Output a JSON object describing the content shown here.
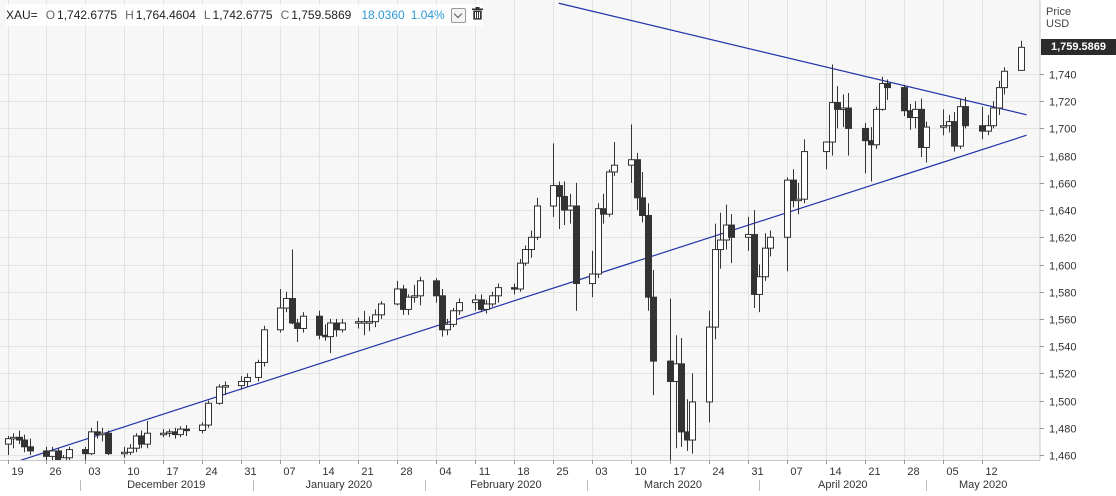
{
  "header": {
    "symbol": "XAU=",
    "open_label": "O",
    "open": "1,742.6775",
    "high_label": "H",
    "high": "1,764.4604",
    "low_label": "L",
    "low": "1,742.6775",
    "close_label": "C",
    "close": "1,759.5869",
    "change": "18.0360",
    "change_pct": "1.04%",
    "change_color": "#2b9bd6",
    "icons": [
      "dropdown-chevron-icon",
      "trash-icon"
    ]
  },
  "price_axis": {
    "title_line1": "Price",
    "title_line2": "USD",
    "last_price_label": "1,759.5869"
  },
  "chart_data": {
    "type": "candlestick",
    "symbol": "XAU=",
    "ylim": [
      1445,
      1783
    ],
    "y_ticks": [
      1460,
      1480,
      1500,
      1520,
      1540,
      1560,
      1580,
      1600,
      1620,
      1640,
      1660,
      1680,
      1700,
      1720,
      1740
    ],
    "y_tick_labels": [
      "1,460",
      "1,480",
      "1,500",
      "1,520",
      "1,540",
      "1,560",
      "1,580",
      "1,600",
      "1,620",
      "1,640",
      "1,660",
      "1,680",
      "1,700",
      "1,720",
      "1,740"
    ],
    "x_day_labels": [
      "19",
      "26",
      "03",
      "10",
      "17",
      "24",
      "31",
      "07",
      "14",
      "21",
      "28",
      "04",
      "11",
      "18",
      "25",
      "03",
      "10",
      "17",
      "24",
      "31",
      "07",
      "14",
      "21",
      "28",
      "05",
      "12"
    ],
    "x_month_labels": [
      "December 2019",
      "January 2020",
      "February 2020",
      "March 2020",
      "April 2020",
      "May 2020"
    ],
    "last_price": 1759.5869,
    "colors": {
      "up_fill": "#ffffff",
      "down_fill": "#333333",
      "outline": "#333333",
      "trendline": "#2233aa",
      "grid": "#e3e3e3"
    },
    "candles": [
      {
        "date": "2019-11-18",
        "o": 1468,
        "h": 1474,
        "l": 1460,
        "c": 1472
      },
      {
        "date": "2019-11-19",
        "o": 1472,
        "h": 1476,
        "l": 1465,
        "c": 1473
      },
      {
        "date": "2019-11-20",
        "o": 1473,
        "h": 1478,
        "l": 1468,
        "c": 1471
      },
      {
        "date": "2019-11-21",
        "o": 1471,
        "h": 1475,
        "l": 1462,
        "c": 1466
      },
      {
        "date": "2019-11-22",
        "o": 1466,
        "h": 1472,
        "l": 1460,
        "c": 1463
      },
      {
        "date": "2019-11-25",
        "o": 1463,
        "h": 1466,
        "l": 1455,
        "c": 1459
      },
      {
        "date": "2019-11-26",
        "o": 1459,
        "h": 1466,
        "l": 1455,
        "c": 1463
      },
      {
        "date": "2019-11-27",
        "o": 1463,
        "h": 1465,
        "l": 1453,
        "c": 1456
      },
      {
        "date": "2019-11-28",
        "o": 1456,
        "h": 1460,
        "l": 1452,
        "c": 1458
      },
      {
        "date": "2019-11-29",
        "o": 1458,
        "h": 1466,
        "l": 1455,
        "c": 1464
      },
      {
        "date": "2019-12-02",
        "o": 1464,
        "h": 1466,
        "l": 1455,
        "c": 1461
      },
      {
        "date": "2019-12-03",
        "o": 1461,
        "h": 1480,
        "l": 1460,
        "c": 1477
      },
      {
        "date": "2019-12-04",
        "o": 1477,
        "h": 1485,
        "l": 1472,
        "c": 1475
      },
      {
        "date": "2019-12-05",
        "o": 1475,
        "h": 1480,
        "l": 1470,
        "c": 1476
      },
      {
        "date": "2019-12-06",
        "o": 1476,
        "h": 1478,
        "l": 1460,
        "c": 1461
      },
      {
        "date": "2019-12-09",
        "o": 1461,
        "h": 1466,
        "l": 1458,
        "c": 1462
      },
      {
        "date": "2019-12-10",
        "o": 1462,
        "h": 1468,
        "l": 1460,
        "c": 1465
      },
      {
        "date": "2019-12-11",
        "o": 1465,
        "h": 1476,
        "l": 1462,
        "c": 1474
      },
      {
        "date": "2019-12-12",
        "o": 1474,
        "h": 1478,
        "l": 1465,
        "c": 1468
      },
      {
        "date": "2019-12-13",
        "o": 1468,
        "h": 1485,
        "l": 1465,
        "c": 1476
      },
      {
        "date": "2019-12-16",
        "o": 1476,
        "h": 1479,
        "l": 1473,
        "c": 1476
      },
      {
        "date": "2019-12-17",
        "o": 1476,
        "h": 1479,
        "l": 1473,
        "c": 1477
      },
      {
        "date": "2019-12-18",
        "o": 1477,
        "h": 1480,
        "l": 1472,
        "c": 1475
      },
      {
        "date": "2019-12-19",
        "o": 1475,
        "h": 1481,
        "l": 1473,
        "c": 1479
      },
      {
        "date": "2019-12-20",
        "o": 1479,
        "h": 1482,
        "l": 1474,
        "c": 1478
      },
      {
        "date": "2019-12-23",
        "o": 1478,
        "h": 1484,
        "l": 1476,
        "c": 1482
      },
      {
        "date": "2019-12-24",
        "o": 1482,
        "h": 1500,
        "l": 1480,
        "c": 1498
      },
      {
        "date": "2019-12-26",
        "o": 1498,
        "h": 1512,
        "l": 1497,
        "c": 1510
      },
      {
        "date": "2019-12-27",
        "o": 1510,
        "h": 1514,
        "l": 1504,
        "c": 1511
      },
      {
        "date": "2019-12-30",
        "o": 1511,
        "h": 1518,
        "l": 1508,
        "c": 1514
      },
      {
        "date": "2019-12-31",
        "o": 1514,
        "h": 1520,
        "l": 1510,
        "c": 1517
      },
      {
        "date": "2020-01-02",
        "o": 1517,
        "h": 1530,
        "l": 1514,
        "c": 1528
      },
      {
        "date": "2020-01-03",
        "o": 1528,
        "h": 1555,
        "l": 1525,
        "c": 1552
      },
      {
        "date": "2020-01-06",
        "o": 1552,
        "h": 1582,
        "l": 1550,
        "c": 1568
      },
      {
        "date": "2020-01-07",
        "o": 1568,
        "h": 1580,
        "l": 1565,
        "c": 1575
      },
      {
        "date": "2020-01-08",
        "o": 1575,
        "h": 1611,
        "l": 1556,
        "c": 1557
      },
      {
        "date": "2020-01-09",
        "o": 1557,
        "h": 1560,
        "l": 1543,
        "c": 1553
      },
      {
        "date": "2020-01-10",
        "o": 1553,
        "h": 1565,
        "l": 1550,
        "c": 1562
      },
      {
        "date": "2020-01-13",
        "o": 1562,
        "h": 1566,
        "l": 1545,
        "c": 1548
      },
      {
        "date": "2020-01-14",
        "o": 1548,
        "h": 1556,
        "l": 1544,
        "c": 1547
      },
      {
        "date": "2020-01-15",
        "o": 1547,
        "h": 1560,
        "l": 1535,
        "c": 1557
      },
      {
        "date": "2020-01-16",
        "o": 1557,
        "h": 1560,
        "l": 1547,
        "c": 1552
      },
      {
        "date": "2020-01-17",
        "o": 1552,
        "h": 1560,
        "l": 1550,
        "c": 1557
      },
      {
        "date": "2020-01-20",
        "o": 1557,
        "h": 1561,
        "l": 1553,
        "c": 1558
      },
      {
        "date": "2020-01-21",
        "o": 1558,
        "h": 1566,
        "l": 1548,
        "c": 1558
      },
      {
        "date": "2020-01-22",
        "o": 1558,
        "h": 1562,
        "l": 1551,
        "c": 1558
      },
      {
        "date": "2020-01-23",
        "o": 1558,
        "h": 1567,
        "l": 1554,
        "c": 1563
      },
      {
        "date": "2020-01-24",
        "o": 1563,
        "h": 1573,
        "l": 1560,
        "c": 1571
      },
      {
        "date": "2020-01-27",
        "o": 1571,
        "h": 1588,
        "l": 1570,
        "c": 1582
      },
      {
        "date": "2020-01-28",
        "o": 1582,
        "h": 1585,
        "l": 1563,
        "c": 1567
      },
      {
        "date": "2020-01-29",
        "o": 1567,
        "h": 1578,
        "l": 1563,
        "c": 1576
      },
      {
        "date": "2020-01-30",
        "o": 1576,
        "h": 1585,
        "l": 1572,
        "c": 1577
      },
      {
        "date": "2020-01-31",
        "o": 1577,
        "h": 1591,
        "l": 1570,
        "c": 1588
      },
      {
        "date": "2020-02-03",
        "o": 1588,
        "h": 1590,
        "l": 1572,
        "c": 1577
      },
      {
        "date": "2020-02-04",
        "o": 1577,
        "h": 1582,
        "l": 1547,
        "c": 1552
      },
      {
        "date": "2020-02-05",
        "o": 1552,
        "h": 1560,
        "l": 1548,
        "c": 1556
      },
      {
        "date": "2020-02-06",
        "o": 1556,
        "h": 1568,
        "l": 1554,
        "c": 1566
      },
      {
        "date": "2020-02-07",
        "o": 1566,
        "h": 1575,
        "l": 1563,
        "c": 1572
      },
      {
        "date": "2020-02-10",
        "o": 1572,
        "h": 1578,
        "l": 1566,
        "c": 1574
      },
      {
        "date": "2020-02-11",
        "o": 1574,
        "h": 1578,
        "l": 1565,
        "c": 1567
      },
      {
        "date": "2020-02-12",
        "o": 1567,
        "h": 1574,
        "l": 1564,
        "c": 1571
      },
      {
        "date": "2020-02-13",
        "o": 1571,
        "h": 1580,
        "l": 1569,
        "c": 1577
      },
      {
        "date": "2020-02-14",
        "o": 1577,
        "h": 1586,
        "l": 1572,
        "c": 1583
      },
      {
        "date": "2020-02-17",
        "o": 1583,
        "h": 1586,
        "l": 1578,
        "c": 1582
      },
      {
        "date": "2020-02-18",
        "o": 1582,
        "h": 1604,
        "l": 1580,
        "c": 1601
      },
      {
        "date": "2020-02-19",
        "o": 1601,
        "h": 1614,
        "l": 1599,
        "c": 1611
      },
      {
        "date": "2020-02-20",
        "o": 1611,
        "h": 1625,
        "l": 1605,
        "c": 1620
      },
      {
        "date": "2020-02-21",
        "o": 1620,
        "h": 1649,
        "l": 1618,
        "c": 1643
      },
      {
        "date": "2020-02-24",
        "o": 1643,
        "h": 1689,
        "l": 1635,
        "c": 1658
      },
      {
        "date": "2020-02-25",
        "o": 1658,
        "h": 1661,
        "l": 1626,
        "c": 1650
      },
      {
        "date": "2020-02-26",
        "o": 1650,
        "h": 1661,
        "l": 1629,
        "c": 1640
      },
      {
        "date": "2020-02-27",
        "o": 1640,
        "h": 1652,
        "l": 1630,
        "c": 1643
      },
      {
        "date": "2020-02-28",
        "o": 1643,
        "h": 1660,
        "l": 1566,
        "c": 1586
      },
      {
        "date": "2020-03-02",
        "o": 1586,
        "h": 1610,
        "l": 1576,
        "c": 1593
      },
      {
        "date": "2020-03-03",
        "o": 1593,
        "h": 1645,
        "l": 1590,
        "c": 1641
      },
      {
        "date": "2020-03-04",
        "o": 1641,
        "h": 1652,
        "l": 1630,
        "c": 1637
      },
      {
        "date": "2020-03-05",
        "o": 1637,
        "h": 1670,
        "l": 1635,
        "c": 1668
      },
      {
        "date": "2020-03-06",
        "o": 1668,
        "h": 1690,
        "l": 1665,
        "c": 1673
      },
      {
        "date": "2020-03-09",
        "o": 1673,
        "h": 1703,
        "l": 1660,
        "c": 1677
      },
      {
        "date": "2020-03-10",
        "o": 1677,
        "h": 1682,
        "l": 1640,
        "c": 1649
      },
      {
        "date": "2020-03-11",
        "o": 1649,
        "h": 1668,
        "l": 1631,
        "c": 1636
      },
      {
        "date": "2020-03-12",
        "o": 1636,
        "h": 1645,
        "l": 1566,
        "c": 1576
      },
      {
        "date": "2020-03-13",
        "o": 1576,
        "h": 1596,
        "l": 1504,
        "c": 1529
      },
      {
        "date": "2020-03-16",
        "o": 1529,
        "h": 1575,
        "l": 1451,
        "c": 1514
      },
      {
        "date": "2020-03-17",
        "o": 1514,
        "h": 1548,
        "l": 1465,
        "c": 1527
      },
      {
        "date": "2020-03-18",
        "o": 1527,
        "h": 1546,
        "l": 1466,
        "c": 1477
      },
      {
        "date": "2020-03-19",
        "o": 1477,
        "h": 1501,
        "l": 1463,
        "c": 1471
      },
      {
        "date": "2020-03-20",
        "o": 1471,
        "h": 1520,
        "l": 1461,
        "c": 1499
      },
      {
        "date": "2020-03-23",
        "o": 1499,
        "h": 1566,
        "l": 1484,
        "c": 1554
      },
      {
        "date": "2020-03-24",
        "o": 1554,
        "h": 1630,
        "l": 1545,
        "c": 1611
      },
      {
        "date": "2020-03-25",
        "o": 1611,
        "h": 1638,
        "l": 1597,
        "c": 1618
      },
      {
        "date": "2020-03-26",
        "o": 1618,
        "h": 1644,
        "l": 1611,
        "c": 1629
      },
      {
        "date": "2020-03-27",
        "o": 1629,
        "h": 1637,
        "l": 1601,
        "c": 1620
      },
      {
        "date": "2020-03-30",
        "o": 1620,
        "h": 1635,
        "l": 1610,
        "c": 1622
      },
      {
        "date": "2020-03-31",
        "o": 1622,
        "h": 1640,
        "l": 1568,
        "c": 1578
      },
      {
        "date": "2020-04-01",
        "o": 1578,
        "h": 1600,
        "l": 1565,
        "c": 1591
      },
      {
        "date": "2020-04-02",
        "o": 1591,
        "h": 1623,
        "l": 1588,
        "c": 1612
      },
      {
        "date": "2020-04-03",
        "o": 1612,
        "h": 1625,
        "l": 1606,
        "c": 1620
      },
      {
        "date": "2020-04-06",
        "o": 1620,
        "h": 1664,
        "l": 1595,
        "c": 1662
      },
      {
        "date": "2020-04-07",
        "o": 1662,
        "h": 1670,
        "l": 1642,
        "c": 1647
      },
      {
        "date": "2020-04-08",
        "o": 1647,
        "h": 1660,
        "l": 1637,
        "c": 1648
      },
      {
        "date": "2020-04-09",
        "o": 1648,
        "h": 1692,
        "l": 1645,
        "c": 1683
      },
      {
        "date": "2020-04-13",
        "o": 1683,
        "h": 1690,
        "l": 1670,
        "c": 1690
      },
      {
        "date": "2020-04-14",
        "o": 1690,
        "h": 1747,
        "l": 1680,
        "c": 1719
      },
      {
        "date": "2020-04-15",
        "o": 1719,
        "h": 1731,
        "l": 1700,
        "c": 1714
      },
      {
        "date": "2020-04-16",
        "o": 1714,
        "h": 1725,
        "l": 1701,
        "c": 1715
      },
      {
        "date": "2020-04-17",
        "o": 1715,
        "h": 1726,
        "l": 1680,
        "c": 1700
      },
      {
        "date": "2020-04-20",
        "o": 1700,
        "h": 1704,
        "l": 1667,
        "c": 1691
      },
      {
        "date": "2020-04-21",
        "o": 1691,
        "h": 1701,
        "l": 1661,
        "c": 1688
      },
      {
        "date": "2020-04-22",
        "o": 1688,
        "h": 1716,
        "l": 1685,
        "c": 1714
      },
      {
        "date": "2020-04-23",
        "o": 1714,
        "h": 1738,
        "l": 1713,
        "c": 1733
      },
      {
        "date": "2020-04-24",
        "o": 1733,
        "h": 1736,
        "l": 1721,
        "c": 1730
      },
      {
        "date": "2020-04-27",
        "o": 1730,
        "h": 1732,
        "l": 1709,
        "c": 1713
      },
      {
        "date": "2020-04-28",
        "o": 1713,
        "h": 1718,
        "l": 1699,
        "c": 1708
      },
      {
        "date": "2020-04-29",
        "o": 1708,
        "h": 1720,
        "l": 1700,
        "c": 1714
      },
      {
        "date": "2020-04-30",
        "o": 1714,
        "h": 1722,
        "l": 1679,
        "c": 1686
      },
      {
        "date": "2020-05-01",
        "o": 1686,
        "h": 1705,
        "l": 1675,
        "c": 1701
      },
      {
        "date": "2020-05-04",
        "o": 1701,
        "h": 1714,
        "l": 1695,
        "c": 1702
      },
      {
        "date": "2020-05-05",
        "o": 1702,
        "h": 1710,
        "l": 1697,
        "c": 1705
      },
      {
        "date": "2020-05-06",
        "o": 1705,
        "h": 1712,
        "l": 1683,
        "c": 1687
      },
      {
        "date": "2020-05-07",
        "o": 1687,
        "h": 1722,
        "l": 1685,
        "c": 1716
      },
      {
        "date": "2020-05-08",
        "o": 1716,
        "h": 1723,
        "l": 1700,
        "c": 1702
      },
      {
        "date": "2020-05-11",
        "o": 1702,
        "h": 1716,
        "l": 1692,
        "c": 1698
      },
      {
        "date": "2020-05-12",
        "o": 1698,
        "h": 1710,
        "l": 1695,
        "c": 1702
      },
      {
        "date": "2020-05-13",
        "o": 1702,
        "h": 1720,
        "l": 1700,
        "c": 1715
      },
      {
        "date": "2020-05-14",
        "o": 1715,
        "h": 1735,
        "l": 1710,
        "c": 1730
      },
      {
        "date": "2020-05-15",
        "o": 1730,
        "h": 1745,
        "l": 1725,
        "c": 1742
      },
      {
        "date": "2020-05-18",
        "o": 1742.6775,
        "h": 1764.4604,
        "l": 1742.6775,
        "c": 1759.5869
      }
    ],
    "trendlines": [
      {
        "name": "upper-resistance-line",
        "start": {
          "date": "2020-02-25",
          "value": 1792
        },
        "end": {
          "date": "2020-05-19",
          "value": 1710
        }
      },
      {
        "name": "lower-support-line",
        "start": {
          "date": "2019-11-18",
          "value": 1453
        },
        "end": {
          "date": "2020-05-19",
          "value": 1695
        }
      }
    ]
  }
}
